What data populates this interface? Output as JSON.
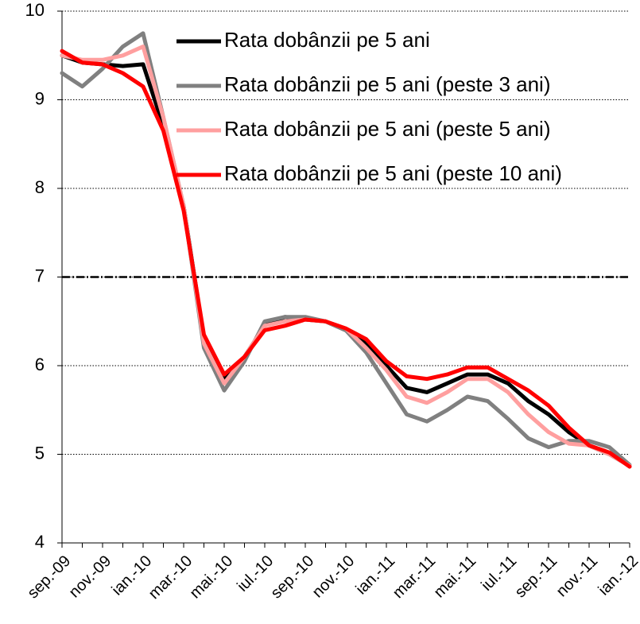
{
  "chart_data": {
    "type": "line",
    "categories": [
      "sep.-09",
      null,
      "nov.-09",
      null,
      "ian.-10",
      null,
      "mar.-10",
      null,
      "mai.-10",
      null,
      "iul.-10",
      null,
      "sep.-10",
      null,
      "nov.-10",
      null,
      "ian.-11",
      null,
      "mar.-11",
      null,
      "mai.-11",
      null,
      "iul.-11",
      null,
      "sep.-11",
      null,
      "nov.-11",
      null,
      "ian.-12"
    ],
    "series": [
      {
        "name": "Rata dobânzii pe 5 ani",
        "color": "#000000",
        "values": [
          9.5,
          9.42,
          9.4,
          9.38,
          9.4,
          8.7,
          7.8,
          6.3,
          5.85,
          6.1,
          6.45,
          6.55,
          6.52,
          6.5,
          6.4,
          6.25,
          6.0,
          5.75,
          5.7,
          5.8,
          5.9,
          5.9,
          5.8,
          5.6,
          5.45,
          5.25,
          5.1,
          5.0,
          4.87
        ]
      },
      {
        "name": "Rata dobânzii pe 5 ani (peste 3 ani)",
        "color": "#808080",
        "values": [
          9.3,
          9.15,
          9.35,
          9.6,
          9.75,
          8.8,
          7.8,
          6.2,
          5.72,
          6.05,
          6.5,
          6.55,
          6.55,
          6.5,
          6.4,
          6.15,
          5.8,
          5.45,
          5.37,
          5.5,
          5.65,
          5.6,
          5.4,
          5.18,
          5.08,
          5.15,
          5.15,
          5.08,
          4.88
        ]
      },
      {
        "name": "Rata dobânzii pe 5 ani (peste 5 ani)",
        "color": "#ff9f9f",
        "values": [
          9.5,
          9.45,
          9.45,
          9.5,
          9.6,
          8.8,
          7.8,
          6.25,
          5.8,
          6.1,
          6.45,
          6.5,
          6.52,
          6.5,
          6.42,
          6.2,
          5.95,
          5.65,
          5.58,
          5.7,
          5.85,
          5.85,
          5.7,
          5.45,
          5.25,
          5.12,
          5.1,
          5.0,
          4.87
        ]
      },
      {
        "name": "Rata dobânzii pe 5 ani (peste 10 ani)",
        "color": "#ff0000",
        "values": [
          9.55,
          9.42,
          9.4,
          9.3,
          9.15,
          8.65,
          7.75,
          6.35,
          5.9,
          6.1,
          6.4,
          6.45,
          6.52,
          6.5,
          6.42,
          6.3,
          6.05,
          5.88,
          5.85,
          5.9,
          5.98,
          5.98,
          5.85,
          5.72,
          5.55,
          5.3,
          5.1,
          5.02,
          4.86
        ]
      }
    ],
    "ylim": [
      4,
      10
    ],
    "yticks": [
      4,
      5,
      6,
      7,
      8,
      9,
      10
    ],
    "grid": true,
    "reference_line": 7,
    "legend": "upper right"
  }
}
